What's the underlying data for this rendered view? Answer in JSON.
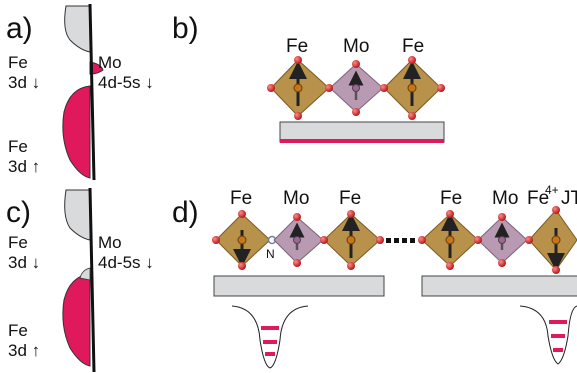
{
  "figure": {
    "panels": {
      "a": "a)",
      "b": "b)",
      "c": "c)",
      "d": "d)"
    },
    "panel_a": {
      "fe_down": [
        "Fe",
        "3d ↓"
      ],
      "mo_down": [
        "Mo",
        "4d-5s ↓"
      ],
      "fe_up": [
        "Fe",
        "3d ↑"
      ]
    },
    "panel_b": {
      "atoms": [
        "Fe",
        "Mo",
        "Fe"
      ]
    },
    "panel_c": {
      "fe_down": [
        "Fe",
        "3d ↓"
      ],
      "mo_down": [
        "Mo",
        "4d-5s ↓"
      ],
      "fe_up": [
        "Fe",
        "3d ↑"
      ]
    },
    "panel_d": {
      "left_atoms": [
        "Fe",
        "Mo",
        "Fe"
      ],
      "right_atoms": [
        "Fe",
        "Mo",
        "Fe"
      ],
      "fe4_superscript": "4+",
      "jt_label": "JT",
      "n_label": "N"
    },
    "colors": {
      "magenta": "#e0195c",
      "grey": "#d9dadc",
      "fe_oct": "#b8914a",
      "mo_oct": "#b89ab2",
      "oxygen": "#d81c1c"
    }
  }
}
